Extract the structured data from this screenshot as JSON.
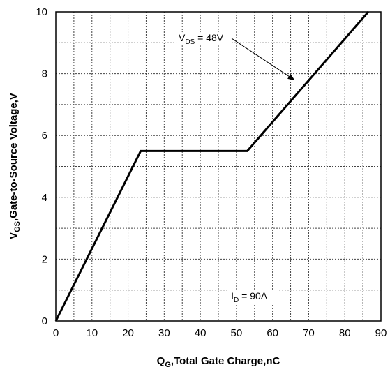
{
  "chart_data": {
    "type": "line",
    "title": "",
    "xlabel": {
      "main": "Q",
      "sub": "G",
      "rest": ",Total Gate Charge,nC"
    },
    "ylabel": {
      "main": "V",
      "sub": "GS",
      "rest": ",Gate-to-Source Voltage,V"
    },
    "xlim": [
      0,
      90
    ],
    "ylim": [
      0,
      10
    ],
    "xticks": [
      0,
      10,
      20,
      30,
      40,
      50,
      60,
      70,
      80,
      90
    ],
    "yticks": [
      0,
      2,
      4,
      6,
      8,
      10
    ],
    "grid": true,
    "x_minor_step": 5,
    "y_minor_step": 1,
    "series": [
      {
        "x": [
          0,
          23.5,
          53,
          86.5
        ],
        "y": [
          0,
          5.5,
          5.5,
          10
        ]
      }
    ],
    "annotations": [
      {
        "main": "V",
        "sub": "DS",
        "rest": " = 48V",
        "x": 34,
        "y": 9.05,
        "arrow_to": [
          66,
          7.8
        ]
      },
      {
        "main": "I",
        "sub": "D",
        "rest": " = 90A",
        "x": 48.5,
        "y": 0.7
      }
    ]
  }
}
